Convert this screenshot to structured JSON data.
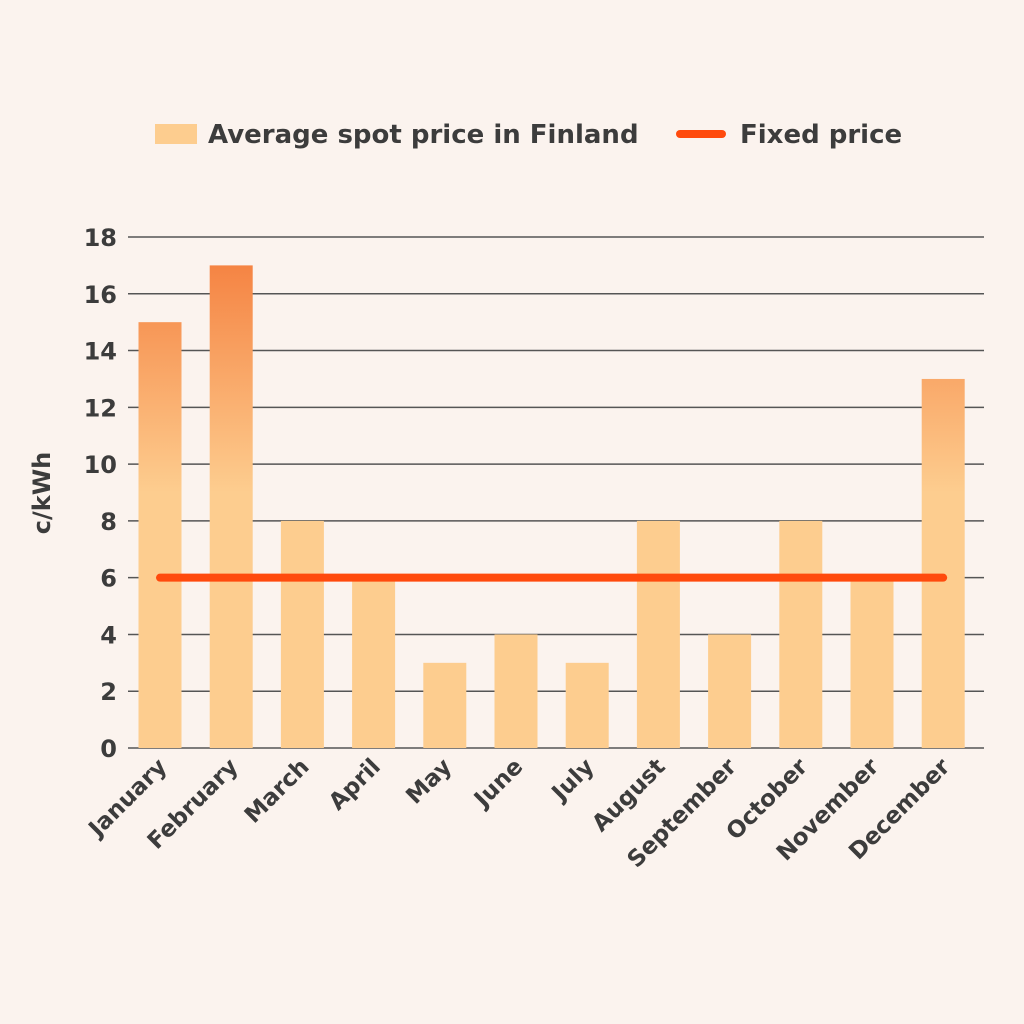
{
  "chart_data": {
    "type": "bar",
    "title": "",
    "xlabel": "",
    "ylabel": "c/kWh",
    "ylim": [
      0,
      18
    ],
    "yticks": [
      0,
      2,
      4,
      6,
      8,
      10,
      12,
      14,
      16,
      18
    ],
    "grid": true,
    "legend_position": "top",
    "categories": [
      "January",
      "February",
      "March",
      "April",
      "May",
      "June",
      "July",
      "August",
      "September",
      "October",
      "November",
      "December"
    ],
    "series": [
      {
        "name": "Average spot price in Finland",
        "kind": "bar",
        "values": [
          15,
          17,
          8,
          6,
          3,
          4,
          3,
          8,
          4,
          8,
          6,
          13
        ],
        "color_low": "#fdcd8f",
        "color_high": "#f47b3a"
      },
      {
        "name": "Fixed price",
        "kind": "line",
        "values": [
          6,
          6,
          6,
          6,
          6,
          6,
          6,
          6,
          6,
          6,
          6,
          6
        ],
        "color": "#ff4a0d"
      }
    ]
  }
}
